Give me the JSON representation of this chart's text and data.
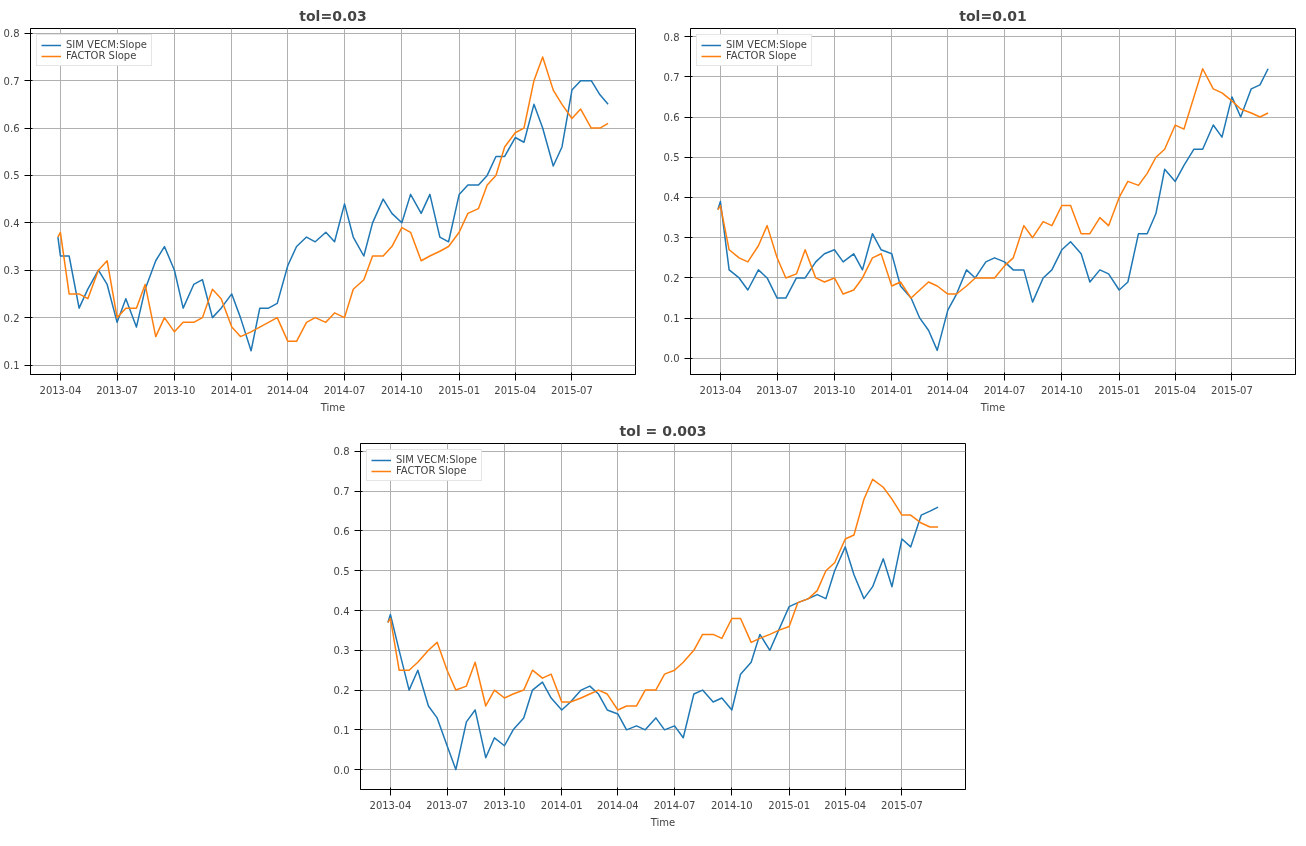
{
  "chart_data": [
    {
      "type": "line",
      "title": "tol=0.03",
      "xlabel": "Time",
      "legend": "top left",
      "grid": true,
      "xlim": [
        "2013-02-12",
        "2015-10-11"
      ],
      "ylim": [
        0.08,
        0.81
      ],
      "xticks": [
        "2013-04",
        "2013-07",
        "2013-10",
        "2014-01",
        "2014-04",
        "2014-07",
        "2014-10",
        "2015-01",
        "2015-04",
        "2015-07"
      ],
      "yticks": [
        0.1,
        0.2,
        0.3,
        0.4,
        0.5,
        0.6,
        0.7,
        0.8
      ],
      "x": [
        "2013-03-28",
        "2013-04-01",
        "2013-04-15",
        "2013-05-01",
        "2013-05-15",
        "2013-06-01",
        "2013-06-15",
        "2013-07-01",
        "2013-07-15",
        "2013-08-01",
        "2013-08-15",
        "2013-09-01",
        "2013-09-15",
        "2013-10-01",
        "2013-10-15",
        "2013-11-01",
        "2013-11-15",
        "2013-12-01",
        "2013-12-15",
        "2014-01-01",
        "2014-01-15",
        "2014-02-01",
        "2014-02-15",
        "2014-03-01",
        "2014-03-15",
        "2014-04-01",
        "2014-04-15",
        "2014-05-01",
        "2014-05-15",
        "2014-06-01",
        "2014-06-15",
        "2014-07-01",
        "2014-07-15",
        "2014-08-01",
        "2014-08-15",
        "2014-09-01",
        "2014-09-15",
        "2014-10-01",
        "2014-10-15",
        "2014-11-01",
        "2014-11-15",
        "2014-12-01",
        "2014-12-15",
        "2015-01-01",
        "2015-01-15",
        "2015-02-01",
        "2015-02-15",
        "2015-03-01",
        "2015-03-15",
        "2015-04-01",
        "2015-04-15",
        "2015-05-01",
        "2015-05-15",
        "2015-06-01",
        "2015-06-15",
        "2015-07-01",
        "2015-07-15",
        "2015-08-01",
        "2015-08-15",
        "2015-08-28"
      ],
      "series": [
        {
          "name": "SIM VECM:Slope",
          "color": "#1f77b4",
          "values": [
            0.37,
            0.33,
            0.33,
            0.22,
            0.26,
            0.3,
            0.27,
            0.19,
            0.24,
            0.18,
            0.26,
            0.32,
            0.35,
            0.3,
            0.22,
            0.27,
            0.28,
            0.2,
            0.22,
            0.25,
            0.2,
            0.13,
            0.22,
            0.22,
            0.23,
            0.31,
            0.35,
            0.37,
            0.36,
            0.38,
            0.36,
            0.44,
            0.37,
            0.33,
            0.4,
            0.45,
            0.42,
            0.4,
            0.46,
            0.42,
            0.46,
            0.37,
            0.36,
            0.46,
            0.48,
            0.48,
            0.5,
            0.54,
            0.54,
            0.58,
            0.57,
            0.65,
            0.6,
            0.52,
            0.56,
            0.68,
            0.7,
            0.7,
            0.67,
            0.65
          ]
        },
        {
          "name": "FACTOR Slope",
          "color": "#ff7f0e",
          "values": [
            0.37,
            0.38,
            0.25,
            0.25,
            0.24,
            0.3,
            0.32,
            0.2,
            0.22,
            0.22,
            0.27,
            0.16,
            0.2,
            0.17,
            0.19,
            0.19,
            0.2,
            0.26,
            0.24,
            0.18,
            0.16,
            0.17,
            0.18,
            0.19,
            0.2,
            0.15,
            0.15,
            0.19,
            0.2,
            0.19,
            0.21,
            0.2,
            0.26,
            0.28,
            0.33,
            0.33,
            0.35,
            0.39,
            0.38,
            0.32,
            0.33,
            0.34,
            0.35,
            0.38,
            0.42,
            0.43,
            0.48,
            0.5,
            0.56,
            0.59,
            0.6,
            0.7,
            0.75,
            0.68,
            0.65,
            0.62,
            0.64,
            0.6,
            0.6,
            0.61
          ]
        }
      ]
    },
    {
      "type": "line",
      "title": "tol=0.01",
      "xlabel": "Time",
      "legend": "top left",
      "grid": true,
      "xlim": [
        "2013-02-12",
        "2015-10-11"
      ],
      "ylim": [
        -0.04,
        0.82
      ],
      "xticks": [
        "2013-04",
        "2013-07",
        "2013-10",
        "2014-01",
        "2014-04",
        "2014-07",
        "2014-10",
        "2015-01",
        "2015-04",
        "2015-07"
      ],
      "yticks": [
        {
          "value": 0,
          "label": "0.0"
        },
        0.1,
        0.2,
        0.3,
        0.4,
        0.5,
        0.6,
        0.7,
        0.8
      ],
      "x": [
        "2013-03-28",
        "2013-04-01",
        "2013-04-15",
        "2013-05-01",
        "2013-05-15",
        "2013-06-01",
        "2013-06-15",
        "2013-07-01",
        "2013-07-15",
        "2013-08-01",
        "2013-08-15",
        "2013-09-01",
        "2013-09-15",
        "2013-10-01",
        "2013-10-15",
        "2013-11-01",
        "2013-11-15",
        "2013-12-01",
        "2013-12-15",
        "2014-01-01",
        "2014-01-15",
        "2014-02-01",
        "2014-02-15",
        "2014-03-01",
        "2014-03-15",
        "2014-04-01",
        "2014-04-15",
        "2014-05-01",
        "2014-05-15",
        "2014-06-01",
        "2014-06-15",
        "2014-07-01",
        "2014-07-15",
        "2014-08-01",
        "2014-08-15",
        "2014-09-01",
        "2014-09-15",
        "2014-10-01",
        "2014-10-15",
        "2014-11-01",
        "2014-11-15",
        "2014-12-01",
        "2014-12-15",
        "2015-01-01",
        "2015-01-15",
        "2015-02-01",
        "2015-02-15",
        "2015-03-01",
        "2015-03-15",
        "2015-04-01",
        "2015-04-15",
        "2015-05-01",
        "2015-05-15",
        "2015-06-01",
        "2015-06-15",
        "2015-07-01",
        "2015-07-15",
        "2015-08-01",
        "2015-08-15",
        "2015-08-28"
      ],
      "series": [
        {
          "name": "SIM VECM:Slope",
          "color": "#1f77b4",
          "values": [
            0.37,
            0.39,
            0.22,
            0.2,
            0.17,
            0.22,
            0.2,
            0.15,
            0.15,
            0.2,
            0.2,
            0.24,
            0.26,
            0.27,
            0.24,
            0.26,
            0.22,
            0.31,
            0.27,
            0.26,
            0.18,
            0.15,
            0.1,
            0.07,
            0.02,
            0.12,
            0.16,
            0.22,
            0.2,
            0.24,
            0.25,
            0.24,
            0.22,
            0.22,
            0.14,
            0.2,
            0.22,
            0.27,
            0.29,
            0.26,
            0.19,
            0.22,
            0.21,
            0.17,
            0.19,
            0.31,
            0.31,
            0.36,
            0.47,
            0.44,
            0.48,
            0.52,
            0.52,
            0.58,
            0.55,
            0.65,
            0.6,
            0.67,
            0.68,
            0.72
          ]
        },
        {
          "name": "FACTOR Slope",
          "color": "#ff7f0e",
          "values": [
            0.37,
            0.38,
            0.27,
            0.25,
            0.24,
            0.28,
            0.33,
            0.25,
            0.2,
            0.21,
            0.27,
            0.2,
            0.19,
            0.2,
            0.16,
            0.17,
            0.2,
            0.25,
            0.26,
            0.18,
            0.19,
            0.15,
            0.17,
            0.19,
            0.18,
            0.16,
            0.16,
            0.18,
            0.2,
            0.2,
            0.2,
            0.23,
            0.25,
            0.33,
            0.3,
            0.34,
            0.33,
            0.38,
            0.38,
            0.31,
            0.31,
            0.35,
            0.33,
            0.4,
            0.44,
            0.43,
            0.46,
            0.5,
            0.52,
            0.58,
            0.57,
            0.65,
            0.72,
            0.67,
            0.66,
            0.64,
            0.62,
            0.61,
            0.6,
            0.61
          ]
        }
      ]
    },
    {
      "type": "line",
      "title": "tol = 0.003",
      "xlabel": "Time",
      "legend": "top left",
      "grid": true,
      "xlim": [
        "2013-02-12",
        "2015-10-11"
      ],
      "ylim": [
        -0.05,
        0.82
      ],
      "xticks": [
        "2013-04",
        "2013-07",
        "2013-10",
        "2014-01",
        "2014-04",
        "2014-07",
        "2014-10",
        "2015-01",
        "2015-04",
        "2015-07"
      ],
      "yticks": [
        {
          "value": 0,
          "label": "0.0"
        },
        0.1,
        0.2,
        0.3,
        0.4,
        0.5,
        0.6,
        0.7,
        0.8
      ],
      "x": [
        "2013-03-28",
        "2013-04-01",
        "2013-04-15",
        "2013-05-01",
        "2013-05-15",
        "2013-06-01",
        "2013-06-15",
        "2013-07-01",
        "2013-07-15",
        "2013-08-01",
        "2013-08-15",
        "2013-09-01",
        "2013-09-15",
        "2013-10-01",
        "2013-10-15",
        "2013-11-01",
        "2013-11-15",
        "2013-12-01",
        "2013-12-15",
        "2014-01-01",
        "2014-01-15",
        "2014-02-01",
        "2014-02-15",
        "2014-03-01",
        "2014-03-15",
        "2014-04-01",
        "2014-04-15",
        "2014-05-01",
        "2014-05-15",
        "2014-06-01",
        "2014-06-15",
        "2014-07-01",
        "2014-07-15",
        "2014-08-01",
        "2014-08-15",
        "2014-09-01",
        "2014-09-15",
        "2014-10-01",
        "2014-10-15",
        "2014-11-01",
        "2014-11-15",
        "2014-12-01",
        "2014-12-15",
        "2015-01-01",
        "2015-01-15",
        "2015-02-01",
        "2015-02-15",
        "2015-03-01",
        "2015-03-15",
        "2015-04-01",
        "2015-04-15",
        "2015-05-01",
        "2015-05-15",
        "2015-06-01",
        "2015-06-15",
        "2015-07-01",
        "2015-07-15",
        "2015-08-01",
        "2015-08-15",
        "2015-08-28"
      ],
      "series": [
        {
          "name": "SIM VECM:Slope",
          "color": "#1f77b4",
          "values": [
            0.37,
            0.39,
            0.3,
            0.2,
            0.25,
            0.16,
            0.13,
            0.06,
            0.0,
            0.12,
            0.15,
            0.03,
            0.08,
            0.06,
            0.1,
            0.13,
            0.2,
            0.22,
            0.18,
            0.15,
            0.17,
            0.2,
            0.21,
            0.19,
            0.15,
            0.14,
            0.1,
            0.11,
            0.1,
            0.13,
            0.1,
            0.11,
            0.08,
            0.19,
            0.2,
            0.17,
            0.18,
            0.15,
            0.24,
            0.27,
            0.34,
            0.3,
            0.35,
            0.41,
            0.42,
            0.43,
            0.44,
            0.43,
            0.5,
            0.56,
            0.49,
            0.43,
            0.46,
            0.53,
            0.46,
            0.58,
            0.56,
            0.64,
            0.65,
            0.66
          ]
        },
        {
          "name": "FACTOR Slope",
          "color": "#ff7f0e",
          "values": [
            0.37,
            0.38,
            0.25,
            0.25,
            0.27,
            0.3,
            0.32,
            0.25,
            0.2,
            0.21,
            0.27,
            0.16,
            0.2,
            0.18,
            0.19,
            0.2,
            0.25,
            0.23,
            0.24,
            0.17,
            0.17,
            0.18,
            0.19,
            0.2,
            0.19,
            0.15,
            0.16,
            0.16,
            0.2,
            0.2,
            0.24,
            0.25,
            0.27,
            0.3,
            0.34,
            0.34,
            0.33,
            0.38,
            0.38,
            0.32,
            0.33,
            0.34,
            0.35,
            0.36,
            0.42,
            0.43,
            0.45,
            0.5,
            0.52,
            0.58,
            0.59,
            0.68,
            0.73,
            0.71,
            0.68,
            0.64,
            0.64,
            0.62,
            0.61,
            0.61
          ]
        }
      ]
    }
  ]
}
